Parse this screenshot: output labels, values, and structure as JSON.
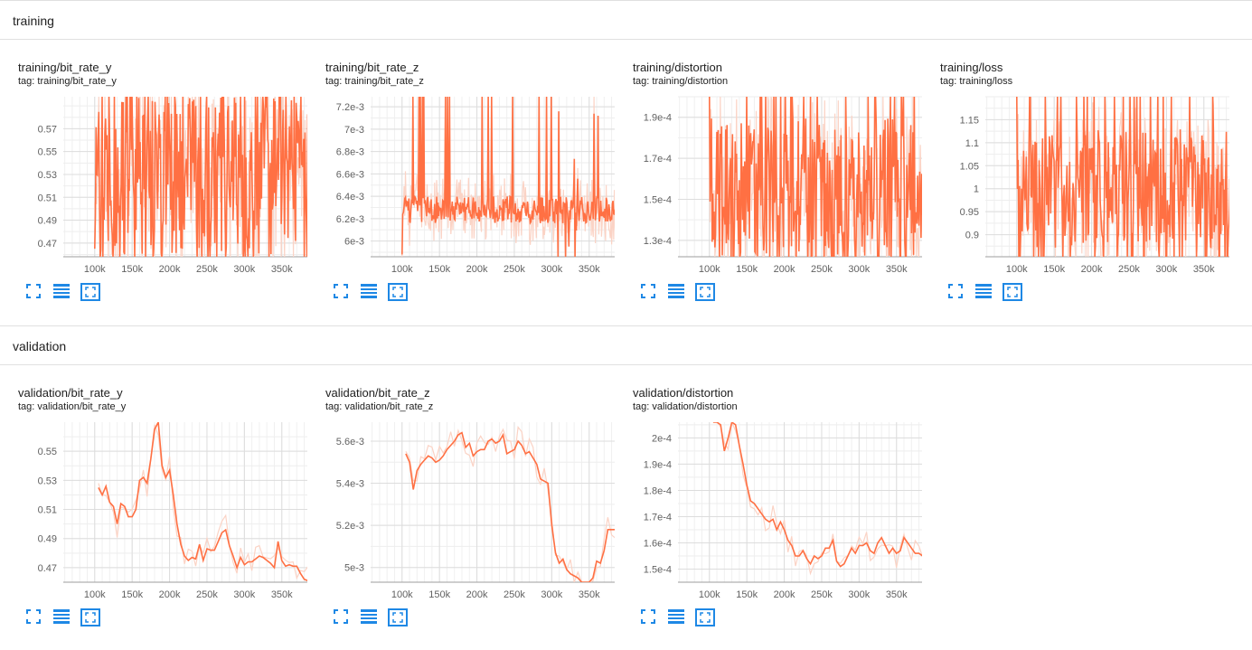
{
  "sections": [
    {
      "title": "training"
    },
    {
      "title": "validation"
    }
  ],
  "colors": {
    "smoothed": "#ff7043",
    "raw": "#fbd3c5",
    "grid": "#e6e6e6",
    "axis": "#9e9e9e",
    "icon": "#1e88e5"
  },
  "toolbar_icons": [
    "fullscreen-icon",
    "data-selection-icon",
    "fit-domain-icon"
  ],
  "x_ticks": [
    "100k",
    "150k",
    "200k",
    "250k",
    "300k",
    "350k"
  ],
  "chart_data": [
    {
      "type": "line",
      "title": "training/bit_rate_y",
      "tag": "tag: training/bit_rate_y",
      "xlim": [
        58000,
        395000
      ],
      "ylim": [
        0.458,
        0.598
      ],
      "y_ticks": [
        "0.47",
        "0.49",
        "0.51",
        "0.53",
        "0.55",
        "0.57"
      ],
      "y_values": [
        0.47,
        0.49,
        0.51,
        0.53,
        0.55,
        0.57
      ],
      "x_range": [
        100000,
        390000
      ],
      "last": 0.465,
      "pattern": "noisy",
      "series": [
        {
          "noise_center": 0.53,
          "noise_amp": 0.07,
          "start": 0.465
        }
      ]
    },
    {
      "type": "line",
      "title": "training/bit_rate_z",
      "tag": "tag: training/bit_rate_z",
      "xlim": [
        58000,
        395000
      ],
      "ylim": [
        0.00586,
        0.00729
      ],
      "y_ticks": [
        "6e-3",
        "6.2e-3",
        "6.4e-3",
        "6.6e-3",
        "6.8e-3",
        "7e-3",
        "7.2e-3"
      ],
      "y_values": [
        0.006,
        0.0062,
        0.0064,
        0.0066,
        0.0068,
        0.007,
        0.0072
      ],
      "x_range": [
        100000,
        390000
      ],
      "last": 0.00602,
      "pattern": "noisy_low",
      "series": [
        {
          "noise_center": 0.00628,
          "noise_amp": 0.0003,
          "start": 0.00588
        }
      ]
    },
    {
      "type": "line",
      "title": "training/distortion",
      "tag": "tag: training/distortion",
      "xlim": [
        58000,
        395000
      ],
      "ylim": [
        0.000122,
        0.0002
      ],
      "y_ticks": [
        "1.3e-4",
        "1.5e-4",
        "1.7e-4",
        "1.9e-4"
      ],
      "y_values": [
        0.00013,
        0.00015,
        0.00017,
        0.00019
      ],
      "x_range": [
        100000,
        390000
      ],
      "last": 0.000131,
      "pattern": "noisy",
      "series": [
        {
          "noise_center": 0.000155,
          "noise_amp": 3.5e-05,
          "start": 0.0002
        }
      ]
    },
    {
      "type": "line",
      "title": "training/loss",
      "tag": "tag: training/loss",
      "xlim": [
        58000,
        395000
      ],
      "ylim": [
        0.852,
        1.2
      ],
      "y_ticks": [
        "0.9",
        "0.95",
        "1",
        "1.05",
        "1.1",
        "1.15"
      ],
      "y_values": [
        0.9,
        0.95,
        1.0,
        1.05,
        1.1,
        1.15
      ],
      "x_range": [
        100000,
        390000
      ],
      "last": 0.882,
      "pattern": "noisy",
      "series": [
        {
          "noise_center": 1.0,
          "noise_amp": 0.13,
          "start": 1.2
        }
      ]
    },
    {
      "type": "line",
      "title": "validation/bit_rate_y",
      "tag": "tag: validation/bit_rate_y",
      "xlim": [
        58000,
        395000
      ],
      "ylim": [
        0.46,
        0.57
      ],
      "y_ticks": [
        "0.47",
        "0.49",
        "0.51",
        "0.53",
        "0.55"
      ],
      "y_values": [
        0.47,
        0.49,
        0.51,
        0.53,
        0.55
      ],
      "pattern": "points",
      "series": [
        {
          "x": [
            105000,
            110000,
            115000,
            120000,
            125000,
            130000,
            135000,
            140000,
            145000,
            150000,
            155000,
            160000,
            165000,
            170000,
            175000,
            180000,
            185000,
            190000,
            195000,
            200000,
            205000,
            210000,
            215000,
            220000,
            225000,
            230000,
            235000,
            240000,
            245000,
            250000,
            255000,
            260000,
            265000,
            270000,
            275000,
            280000,
            285000,
            290000,
            295000,
            300000,
            305000,
            310000,
            315000,
            320000,
            325000,
            330000,
            335000,
            340000,
            345000,
            350000,
            355000,
            360000,
            365000,
            370000,
            375000,
            380000,
            385000,
            390000
          ],
          "y": [
            0.525,
            0.52,
            0.526,
            0.515,
            0.512,
            0.5,
            0.514,
            0.512,
            0.505,
            0.505,
            0.51,
            0.53,
            0.532,
            0.528,
            0.545,
            0.565,
            0.57,
            0.54,
            0.532,
            0.537,
            0.52,
            0.5,
            0.486,
            0.478,
            0.475,
            0.477,
            0.476,
            0.486,
            0.475,
            0.483,
            0.482,
            0.482,
            0.488,
            0.494,
            0.496,
            0.485,
            0.478,
            0.47,
            0.477,
            0.472,
            0.474,
            0.474,
            0.476,
            0.478,
            0.477,
            0.475,
            0.473,
            0.47,
            0.488,
            0.475,
            0.471,
            0.472,
            0.471,
            0.471,
            0.466,
            0.462,
            0.461,
            0.46
          ]
        }
      ]
    },
    {
      "type": "line",
      "title": "validation/bit_rate_z",
      "tag": "tag: validation/bit_rate_z",
      "xlim": [
        58000,
        395000
      ],
      "ylim": [
        0.00493,
        0.00569
      ],
      "y_ticks": [
        "5e-3",
        "5.2e-3",
        "5.4e-3",
        "5.6e-3"
      ],
      "y_values": [
        0.005,
        0.0052,
        0.0054,
        0.0056
      ],
      "pattern": "points",
      "last": 0.00518,
      "series": [
        {
          "x": [
            105000,
            110000,
            115000,
            120000,
            125000,
            130000,
            135000,
            140000,
            145000,
            150000,
            155000,
            160000,
            165000,
            170000,
            175000,
            180000,
            185000,
            190000,
            195000,
            200000,
            205000,
            210000,
            215000,
            220000,
            225000,
            230000,
            235000,
            240000,
            245000,
            250000,
            255000,
            260000,
            265000,
            270000,
            275000,
            280000,
            285000,
            290000,
            295000,
            300000,
            305000,
            310000,
            315000,
            320000,
            325000,
            330000,
            335000,
            340000,
            345000,
            350000,
            355000,
            360000,
            365000,
            370000,
            375000,
            380000,
            385000,
            390000
          ],
          "y": [
            0.00554,
            0.0055,
            0.00537,
            0.00546,
            0.00549,
            0.00551,
            0.00553,
            0.00552,
            0.0055,
            0.00551,
            0.00553,
            0.00556,
            0.00558,
            0.0056,
            0.00563,
            0.00564,
            0.00557,
            0.00559,
            0.00553,
            0.00555,
            0.00556,
            0.00556,
            0.0056,
            0.00561,
            0.00559,
            0.0056,
            0.00563,
            0.00554,
            0.00555,
            0.00556,
            0.0056,
            0.00558,
            0.00554,
            0.00555,
            0.00552,
            0.00549,
            0.00542,
            0.00541,
            0.0054,
            0.0052,
            0.00507,
            0.00502,
            0.00504,
            0.00499,
            0.00497,
            0.00496,
            0.00495,
            0.00493,
            0.0049,
            0.00488,
            0.00495,
            0.00503,
            0.00502,
            0.00508,
            0.00518,
            0.00518,
            0.00518,
            0.00518
          ]
        }
      ]
    },
    {
      "type": "line",
      "title": "validation/distortion",
      "tag": "tag: validation/distortion",
      "xlim": [
        58000,
        395000
      ],
      "ylim": [
        0.000145,
        0.000206
      ],
      "y_ticks": [
        "1.5e-4",
        "1.6e-4",
        "1.7e-4",
        "1.8e-4",
        "1.9e-4",
        "2e-4"
      ],
      "y_values": [
        0.00015,
        0.00016,
        0.00017,
        0.00018,
        0.00019,
        0.0002
      ],
      "pattern": "points",
      "last": 0.000155,
      "series": [
        {
          "x": [
            105000,
            110000,
            115000,
            120000,
            125000,
            130000,
            135000,
            140000,
            145000,
            150000,
            155000,
            160000,
            165000,
            170000,
            175000,
            180000,
            185000,
            190000,
            195000,
            200000,
            205000,
            210000,
            215000,
            220000,
            225000,
            230000,
            235000,
            240000,
            245000,
            250000,
            255000,
            260000,
            265000,
            270000,
            275000,
            280000,
            285000,
            290000,
            295000,
            300000,
            305000,
            310000,
            315000,
            320000,
            325000,
            330000,
            335000,
            340000,
            345000,
            350000,
            355000,
            360000,
            365000,
            370000,
            375000,
            380000,
            385000,
            390000
          ],
          "y": [
            0.000215,
            0.00021,
            0.000205,
            0.000195,
            0.0002,
            0.00021,
            0.000205,
            0.000197,
            0.00019,
            0.000182,
            0.000176,
            0.000175,
            0.000173,
            0.000171,
            0.000169,
            0.000168,
            0.000169,
            0.000165,
            0.000168,
            0.000165,
            0.000161,
            0.000159,
            0.000155,
            0.000155,
            0.000157,
            0.000154,
            0.000152,
            0.000155,
            0.000154,
            0.000155,
            0.000158,
            0.000158,
            0.000161,
            0.000153,
            0.000151,
            0.000152,
            0.000155,
            0.000158,
            0.000156,
            0.000159,
            0.000159,
            0.00016,
            0.000157,
            0.000156,
            0.00016,
            0.000162,
            0.000159,
            0.000156,
            0.000158,
            0.000156,
            0.000157,
            0.000162,
            0.00016,
            0.000158,
            0.000156,
            0.000156,
            0.000155,
            0.000155
          ]
        }
      ]
    }
  ]
}
